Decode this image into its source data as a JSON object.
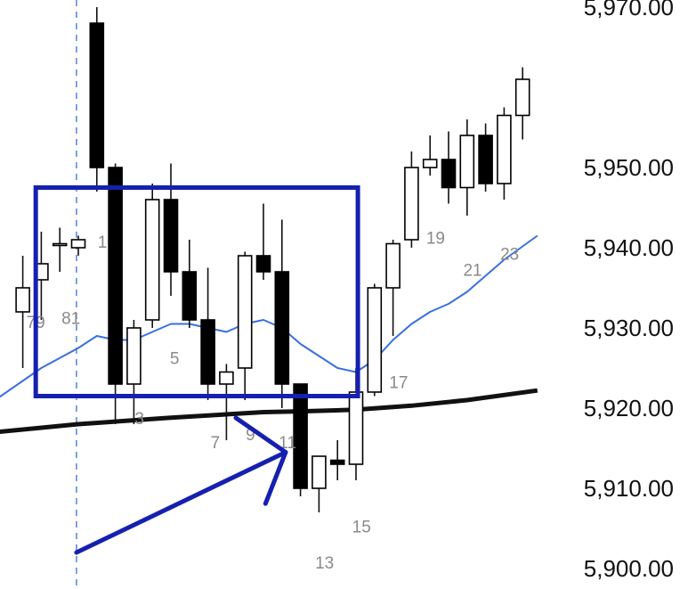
{
  "chart_data": {
    "type": "candlestick",
    "title": "",
    "xlabel": "",
    "ylabel": "",
    "ylim": [
      5899,
      5971
    ],
    "price_ticks": [
      "5,900.00",
      "5,910.00",
      "5,920.00",
      "5,930.00",
      "5,940.00",
      "5,950.00",
      "5,970.00"
    ],
    "price_tick_values": [
      5900,
      5910,
      5920,
      5930,
      5940,
      5950,
      5970
    ],
    "candles": [
      {
        "i": -3,
        "o": 5932,
        "h": 5939,
        "l": 5925,
        "c": 5935
      },
      {
        "i": -2,
        "o": 5936,
        "h": 5942,
        "l": 5931,
        "c": 5938
      },
      {
        "i": -1,
        "o": 5940.5,
        "h": 5942.5,
        "l": 5937,
        "c": 5940.5
      },
      {
        "i": 0,
        "o": 5940,
        "h": 5941.5,
        "l": 5939,
        "c": 5941
      },
      {
        "i": 1,
        "o": 5968,
        "h": 5970,
        "l": 5947,
        "c": 5950
      },
      {
        "i": 2,
        "o": 5950,
        "h": 5950.5,
        "l": 5918,
        "c": 5923
      },
      {
        "i": 3,
        "o": 5923,
        "h": 5931,
        "l": 5918,
        "c": 5930
      },
      {
        "i": 4,
        "o": 5931,
        "h": 5948,
        "l": 5930,
        "c": 5946
      },
      {
        "i": 5,
        "o": 5946,
        "h": 5950.5,
        "l": 5934,
        "c": 5937
      },
      {
        "i": 6,
        "o": 5937,
        "h": 5941,
        "l": 5930,
        "c": 5931
      },
      {
        "i": 7,
        "o": 5931,
        "h": 5937.5,
        "l": 5921,
        "c": 5923
      },
      {
        "i": 8,
        "o": 5923,
        "h": 5925.5,
        "l": 5916,
        "c": 5924.5
      },
      {
        "i": 9,
        "o": 5925,
        "h": 5939.5,
        "l": 5921,
        "c": 5939
      },
      {
        "i": 10,
        "o": 5939,
        "h": 5945.5,
        "l": 5936,
        "c": 5937
      },
      {
        "i": 11,
        "o": 5937,
        "h": 5943.5,
        "l": 5920,
        "c": 5923
      },
      {
        "i": 12,
        "o": 5923,
        "h": 5923,
        "l": 5909,
        "c": 5910
      },
      {
        "i": 13,
        "o": 5910,
        "h": 5914,
        "l": 5907,
        "c": 5914
      },
      {
        "i": 14,
        "o": 5913.5,
        "h": 5916,
        "l": 5911,
        "c": 5913
      },
      {
        "i": 15,
        "o": 5913,
        "h": 5925,
        "l": 5911,
        "c": 5922
      },
      {
        "i": 16,
        "o": 5922,
        "h": 5935.5,
        "l": 5921.5,
        "c": 5935
      },
      {
        "i": 17,
        "o": 5935,
        "h": 5941,
        "l": 5929,
        "c": 5940.5
      },
      {
        "i": 18,
        "o": 5941,
        "h": 5952,
        "l": 5940,
        "c": 5950
      },
      {
        "i": 19,
        "o": 5950,
        "h": 5954,
        "l": 5949,
        "c": 5951
      },
      {
        "i": 20,
        "o": 5951,
        "h": 5954.5,
        "l": 5945.5,
        "c": 5947.5
      },
      {
        "i": 21,
        "o": 5947.5,
        "h": 5956,
        "l": 5944,
        "c": 5954
      },
      {
        "i": 22,
        "o": 5954,
        "h": 5955.5,
        "l": 5947,
        "c": 5948
      },
      {
        "i": 23,
        "o": 5948,
        "h": 5957.5,
        "l": 5946,
        "c": 5956.5
      },
      {
        "i": 24,
        "o": 5956.5,
        "h": 5962.5,
        "l": 5953.5,
        "c": 5961
      }
    ],
    "bar_labels": [
      {
        "text": "79",
        "i": -2.3,
        "y": 5930
      },
      {
        "text": "81",
        "i": -0.4,
        "y": 5930.5
      },
      {
        "text": "1",
        "i": 1.3,
        "y": 5940
      },
      {
        "text": "3",
        "i": 3.3,
        "y": 5918
      },
      {
        "text": "5",
        "i": 5.2,
        "y": 5925.5
      },
      {
        "text": "7",
        "i": 7.4,
        "y": 5915
      },
      {
        "text": "9",
        "i": 9.3,
        "y": 5916
      },
      {
        "text": "11",
        "i": 11.3,
        "y": 5915
      },
      {
        "text": "13",
        "i": 13.3,
        "y": 5900
      },
      {
        "text": "15",
        "i": 15.3,
        "y": 5904.5
      },
      {
        "text": "17",
        "i": 17.3,
        "y": 5922.5
      },
      {
        "text": "19",
        "i": 19.3,
        "y": 5940.5
      },
      {
        "text": "21",
        "i": 21.3,
        "y": 5936.5
      },
      {
        "text": "23",
        "i": 23.3,
        "y": 5938.5
      }
    ],
    "ema_fast": {
      "color": "#3a6fe0",
      "points": [
        [
          -4.5,
          5921
        ],
        [
          -2,
          5925
        ],
        [
          0,
          5927.5
        ],
        [
          1,
          5929
        ],
        [
          2,
          5928.5
        ],
        [
          3,
          5928.5
        ],
        [
          4,
          5929.5
        ],
        [
          5,
          5930.5
        ],
        [
          6,
          5930.5
        ],
        [
          7,
          5930
        ],
        [
          8,
          5929.5
        ],
        [
          9,
          5930.5
        ],
        [
          10,
          5931
        ],
        [
          11,
          5930
        ],
        [
          12,
          5928
        ],
        [
          13,
          5926.5
        ],
        [
          14,
          5925
        ],
        [
          15,
          5924.5
        ],
        [
          16,
          5926
        ],
        [
          17,
          5928.5
        ],
        [
          18,
          5930.5
        ],
        [
          19,
          5932
        ],
        [
          20,
          5933
        ],
        [
          21,
          5934.5
        ],
        [
          22,
          5936.5
        ],
        [
          23,
          5938.5
        ],
        [
          24.8,
          5941.5
        ]
      ]
    },
    "ema_slow": {
      "color": "#111111",
      "points": [
        [
          -4.5,
          5917
        ],
        [
          0,
          5918
        ],
        [
          5,
          5918.8
        ],
        [
          10,
          5919.5
        ],
        [
          12,
          5919.6
        ],
        [
          15,
          5919.8
        ],
        [
          18,
          5920.3
        ],
        [
          21,
          5921
        ],
        [
          24.8,
          5922.2
        ]
      ]
    },
    "annotations": {
      "color": "#1520b0",
      "box": {
        "i1": -2.3,
        "i2": 15.1,
        "y_top": 5947.5,
        "y_bottom": 5921.5
      },
      "arrow": {
        "from": [
          -0.1,
          5902
        ],
        "to": [
          11.2,
          5914.5
        ]
      },
      "vline": {
        "i": -0.1,
        "color": "#4a86d8"
      }
    }
  }
}
